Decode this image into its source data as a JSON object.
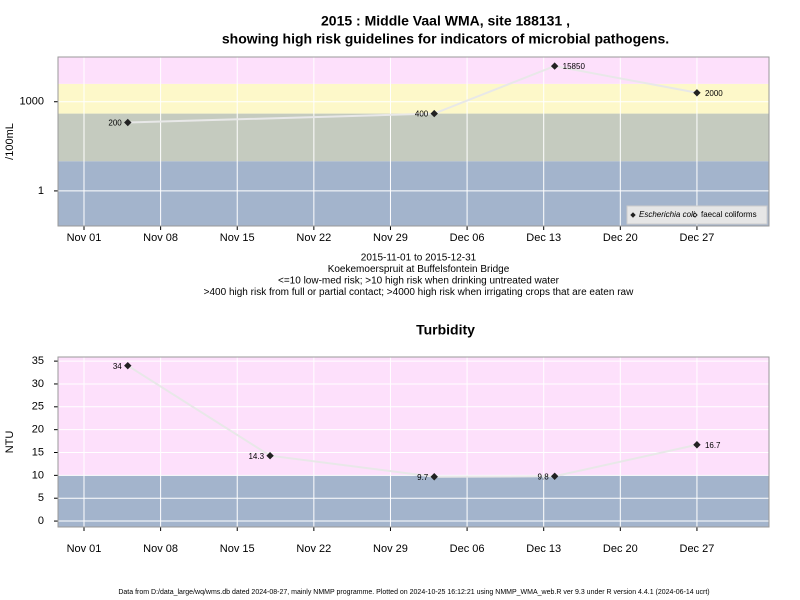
{
  "chart_data": [
    {
      "type": "line",
      "title": [
        "2015 : Middle Vaal WMA, site 188131 ,",
        "showing high risk guidelines for indicators of microbial pathogens."
      ],
      "y_label": "/100mL",
      "x": [
        "2015-11-05",
        "2015-12-03",
        "2015-12-14",
        "2015-12-27"
      ],
      "series": [
        {
          "name": "Escherichia coli",
          "color": "#222222",
          "marker": "filled",
          "values": [
            200,
            400,
            15850,
            2000
          ]
        },
        {
          "name": "faecal coliforms",
          "color": "#222222",
          "marker": "open",
          "values": [
            null,
            null,
            null,
            null
          ]
        }
      ],
      "log_scale": true,
      "ylim": [
        0.066,
        32000
      ],
      "yticks": [
        1,
        1000
      ],
      "xlim": [
        "2015-10-29T15:00",
        "2016-01-02T14:00"
      ],
      "xticks": [
        {
          "value": "2015-11-01",
          "label": "Nov 01"
        },
        {
          "value": "2015-11-08",
          "label": "Nov 08"
        },
        {
          "value": "2015-11-15",
          "label": "Nov 15"
        },
        {
          "value": "2015-11-22",
          "label": "Nov 22"
        },
        {
          "value": "2015-11-29",
          "label": "Nov 29"
        },
        {
          "value": "2015-12-06",
          "label": "Dec 06"
        },
        {
          "value": "2015-12-13",
          "label": "Dec 13"
        },
        {
          "value": "2015-12-20",
          "label": "Dec 20"
        },
        {
          "value": "2015-12-27",
          "label": "Dec 27"
        }
      ],
      "thresholds": [
        10,
        400,
        4000
      ],
      "band_colors": [
        "#a3b4cc",
        "#c5cbbf",
        "#fdf8c9",
        "#fde0fb"
      ],
      "grid": true,
      "legend": "lower right",
      "notes": [
        "2015-11-01 to 2015-12-31",
        "Koekemoerspruit at Buffelsfontein Bridge",
        "<=10 low-med risk; >10 high risk when drinking untreated water",
        ">400 high risk from full or partial contact; >4000 high risk when irrigating crops that are eaten raw"
      ]
    },
    {
      "type": "line",
      "title": [
        "Turbidity"
      ],
      "y_label": "NTU",
      "x": [
        "2015-11-05",
        "2015-11-18",
        "2015-12-03",
        "2015-12-14",
        "2015-12-27"
      ],
      "series": [
        {
          "color": "#222222",
          "marker": "filled",
          "values": [
            34,
            14.3,
            9.7,
            9.8,
            16.7
          ]
        }
      ],
      "log_scale": false,
      "ylim": [
        -1.3,
        35.9
      ],
      "yticks": [
        0,
        5,
        10,
        15,
        20,
        25,
        30,
        35
      ],
      "xlim": [
        "2015-10-29T15:00",
        "2016-01-02T14:00"
      ],
      "xticks": [
        {
          "value": "2015-11-01",
          "label": "Nov 01"
        },
        {
          "value": "2015-11-08",
          "label": "Nov 08"
        },
        {
          "value": "2015-11-15",
          "label": "Nov 15"
        },
        {
          "value": "2015-11-22",
          "label": "Nov 22"
        },
        {
          "value": "2015-11-29",
          "label": "Nov 29"
        },
        {
          "value": "2015-12-06",
          "label": "Dec 06"
        },
        {
          "value": "2015-12-13",
          "label": "Dec 13"
        },
        {
          "value": "2015-12-20",
          "label": "Dec 20"
        },
        {
          "value": "2015-12-27",
          "label": "Dec 27"
        }
      ],
      "thresholds": [
        10
      ],
      "band_colors": [
        "#a3b4cc",
        "#fde0fb"
      ],
      "grid": true,
      "footer": "Data from D:/data_large/wq/wms.db dated 2024-08-27, mainly NMMP programme. Plotted on 2024-10-25 16:12:21 using NMMP_WMA_web.R ver 9.3 under R version 4.4.1 (2024-06-14 ucrt)"
    }
  ]
}
